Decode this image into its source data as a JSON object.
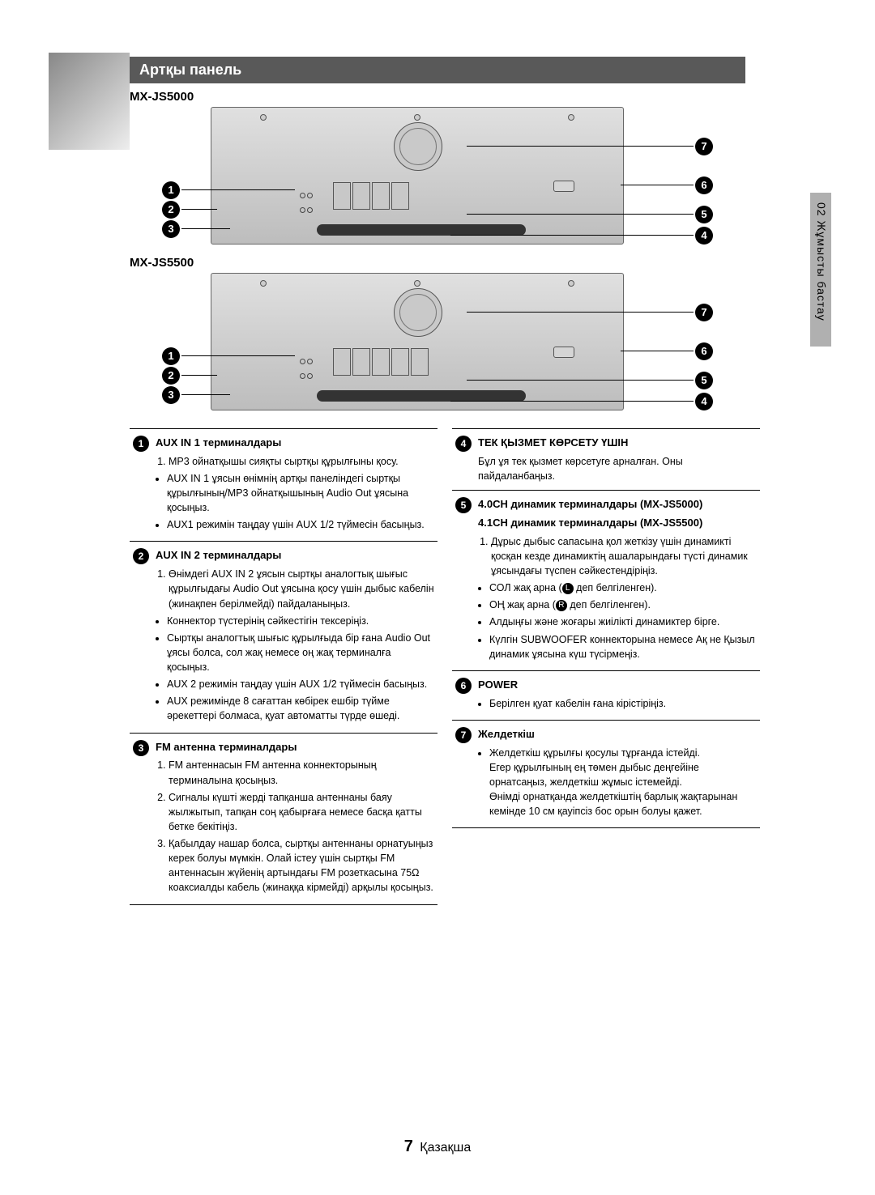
{
  "gradient_colors": [
    "#888888",
    "#eeeeee"
  ],
  "section_title": "Артқы панель",
  "header_bg": "#595959",
  "header_fg": "#ffffff",
  "model_1": "MX-JS5000",
  "model_2": "MX-JS5500",
  "side_tab": "02   Жұмысты бастау",
  "left_items": [
    {
      "num": "1",
      "title": "AUX IN 1 терминалдары",
      "ol": [
        "MP3 ойнатқышы сияқты сыртқы құрылғыны қосу."
      ],
      "ul": [
        "AUX IN 1 ұясын өнімнің артқы панеліндегі сыртқы құрылғының/MP3 ойнатқышының Audio Out ұясына қосыңыз.",
        "AUX1 режимін таңдау үшін AUX 1/2 түймесін басыңыз."
      ]
    },
    {
      "num": "2",
      "title": "AUX IN 2 терминалдары",
      "ol": [
        "Өнімдегі AUX IN 2 ұясын сыртқы аналогтық шығыс құрылғыдағы Audio Out ұясына қосу үшін дыбыс кабелін (жинақпен берілмейді) пайдаланыңыз."
      ],
      "ul": [
        "Коннектор түстерінің сәйкестігін тексеріңіз.",
        "Сыртқы аналогтық шығыс құрылғыда бір ғана Audio Out ұясы болса, сол жақ немесе оң жақ терминалға қосыңыз.",
        "AUX 2 режимін таңдау үшін AUX 1/2 түймесін басыңыз.",
        "AUX режимінде 8 сағаттан көбірек ешбір түйме әрекеттері болмаса, қуат автоматты түрде өшеді."
      ]
    },
    {
      "num": "3",
      "title": "FM антенна терминалдары",
      "ol": [
        "FM антеннасын FM антенна коннекторының терминалына қосыңыз.",
        "Сигналы күшті жерді тапқанша антеннаны баяу жылжытып, тапқан соң қабырғаға немесе басқа қатты бетке бекітіңіз.",
        "Қабылдау нашар болса, сыртқы антеннаны орнатуыңыз керек болуы мүмкін. Олай істеу үшін сыртқы FM антеннасын жүйенің артындағы FM розеткасына 75Ω коаксиалды кабель (жинаққа кірмейді) арқылы қосыңыз."
      ],
      "ul": []
    }
  ],
  "right_items": [
    {
      "num": "4",
      "title": "ТЕК ҚЫЗМЕТ КӨРСЕТУ ҮШІН",
      "plain": "Бұл ұя тек қызмет көрсетуге арналған. Оны пайдаланбаңыз."
    },
    {
      "num": "5",
      "title_lines": [
        "4.0CH динамик терминалдары (MX-JS5000)",
        "4.1CH динамик терминалдары (MX-JS5500)"
      ],
      "ol": [
        "Дұрыс дыбыс сапасына қол жеткізу үшін динамикті қосқан кезде динамиктің ашаларындағы түсті динамик ұясындағы түспен сәйкестендіріңіз."
      ],
      "ul_special": [
        {
          "pre": "СОЛ жақ арна (",
          "icon": "L",
          "post": " деп белгіленген)."
        },
        {
          "pre": "ОҢ жақ арна (",
          "icon": "R",
          "post": " деп белгіленген)."
        }
      ],
      "ul": [
        "Алдыңғы және жоғары жиілікті динамиктер бірге.",
        "Күлгін SUBWOOFER коннекторына немесе Ақ не Қызыл динамик ұясына күш түсірмеңіз."
      ]
    },
    {
      "num": "6",
      "title": "POWER",
      "ul": [
        "Берілген қуат кабелін ғана кірістіріңіз."
      ]
    },
    {
      "num": "7",
      "title": "Желдеткіш",
      "ul": [
        "Желдеткіш құрылғы қосулы тұрғанда істейді.\nЕгер құрылғының ең төмен дыбыс деңгейіне орнатсаңыз, желдеткіш жұмыс істемейді.\nӨнімді орнатқанда желдеткіштің барлық жақтарынан кемінде 10 см қауіпсіз бос орын болуы қажет."
      ]
    }
  ],
  "footer_page": "7",
  "footer_lang": "Қазақша"
}
